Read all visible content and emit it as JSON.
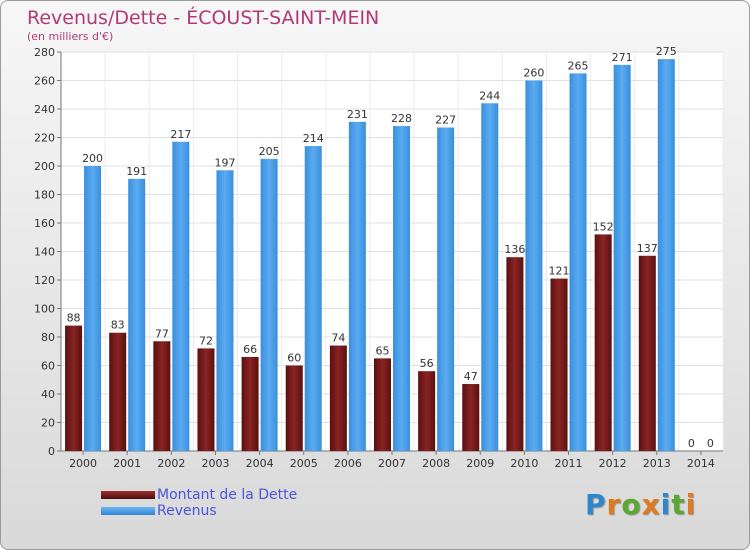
{
  "title": "Revenus/Dette - ÉCOUST-SAINT-MEIN",
  "subtitle": "(en milliers d'€)",
  "colors": {
    "dette": "#7a1a1a",
    "revenus": "#3f97e3",
    "title": "#b03a78",
    "legend_text": "#4a55dd"
  },
  "legend": [
    {
      "label": "Montant de la Dette",
      "color": "#6e1616"
    },
    {
      "label": "Revenus",
      "color": "#3f97e3"
    }
  ],
  "logo": {
    "letters": [
      "P",
      "r",
      "o",
      "x",
      "i",
      "t",
      "i"
    ],
    "colors": [
      "#2f86c8",
      "#e07a1f",
      "#5aa832",
      "#e07a1f",
      "#2f86c8",
      "#5aa832",
      "#e07a1f"
    ]
  },
  "chart_data": {
    "type": "bar",
    "title": "Revenus/Dette - ÉCOUST-SAINT-MEIN",
    "subtitle": "(en milliers d'€)",
    "categories": [
      "2000",
      "2001",
      "2002",
      "2003",
      "2004",
      "2005",
      "2006",
      "2007",
      "2008",
      "2009",
      "2010",
      "2011",
      "2012",
      "2013",
      "2014"
    ],
    "series": [
      {
        "name": "Montant de la Dette",
        "values": [
          88,
          83,
          77,
          72,
          66,
          60,
          74,
          65,
          56,
          47,
          136,
          121,
          152,
          137,
          0
        ]
      },
      {
        "name": "Revenus",
        "values": [
          200,
          191,
          217,
          197,
          205,
          214,
          231,
          228,
          227,
          244,
          260,
          265,
          271,
          275,
          0
        ]
      }
    ],
    "ylim": [
      0,
      280
    ],
    "yticks": [
      0,
      20,
      40,
      60,
      80,
      100,
      120,
      140,
      160,
      180,
      200,
      220,
      240,
      260,
      280
    ],
    "grid": true,
    "legend_position": "bottom-left"
  }
}
